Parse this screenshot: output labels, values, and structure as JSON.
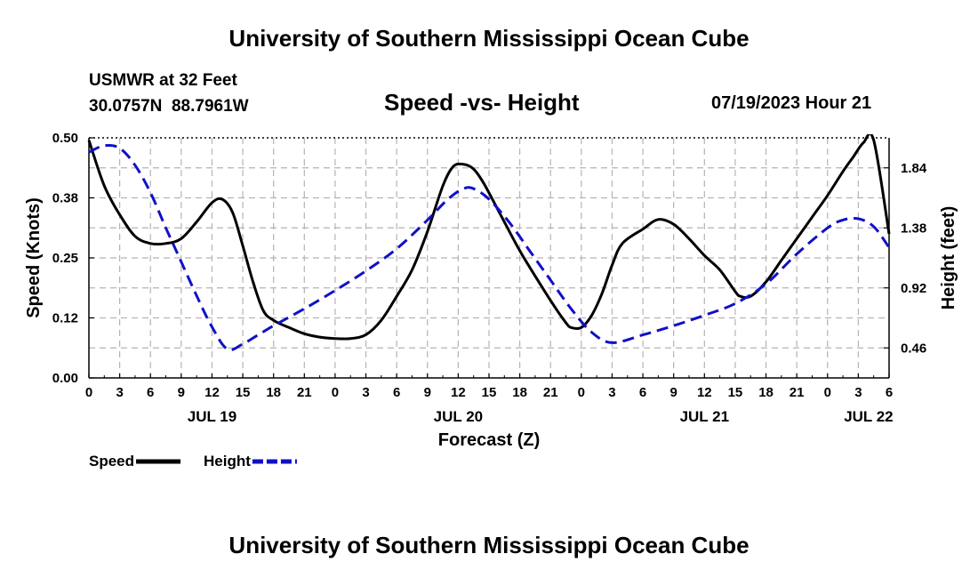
{
  "header": {
    "title": "University of Southern Mississippi Ocean Cube",
    "station_name": "USMWR at 32 Feet",
    "station_coords": "30.0757N  88.7961W",
    "subtitle": "Speed -vs- Height",
    "datestamp": "07/19/2023 Hour 21"
  },
  "footer": {
    "title": "University of Southern Mississippi Ocean Cube"
  },
  "chart_data": {
    "type": "line",
    "title": "Speed -vs- Height",
    "xlabel": "Forecast (Z)",
    "ylabel_left": "Speed (Knots)",
    "ylabel_right": "Height (feet)",
    "x_unit": "hours since 00Z JUL 19",
    "xlim": [
      0,
      78
    ],
    "ylim_left": [
      0,
      0.5
    ],
    "ylim_right": [
      0.23,
      2.07
    ],
    "grid": true,
    "legend_position": "bottom-left",
    "x_ticks": [
      0,
      3,
      6,
      9,
      12,
      15,
      18,
      21,
      24,
      27,
      30,
      33,
      36,
      39,
      42,
      45,
      48,
      51,
      54,
      57,
      60,
      63,
      66,
      69,
      72,
      75,
      78
    ],
    "x_tick_labels": [
      "0",
      "3",
      "6",
      "9",
      "12",
      "15",
      "18",
      "21",
      "0",
      "3",
      "6",
      "9",
      "12",
      "15",
      "18",
      "21",
      "0",
      "3",
      "6",
      "9",
      "12",
      "15",
      "18",
      "21",
      "0",
      "3",
      "6"
    ],
    "date_labels": [
      {
        "x": 12,
        "label": "JUL 19"
      },
      {
        "x": 36,
        "label": "JUL 20"
      },
      {
        "x": 60,
        "label": "JUL 21"
      },
      {
        "x": 76,
        "label": "JUL 22"
      }
    ],
    "y_left_ticks": [
      0.0,
      0.125,
      0.25,
      0.375,
      0.5
    ],
    "y_left_tick_labels": [
      "0.00",
      "0.12",
      "0.25",
      "0.38",
      "0.50"
    ],
    "y_right_ticks": [
      0.46,
      0.92,
      1.38,
      1.84
    ],
    "y_right_tick_labels": [
      "0.46",
      "0.92",
      "1.38",
      "1.84"
    ],
    "series": [
      {
        "name": "Speed",
        "axis": "left",
        "color": "#000000",
        "dash": "solid",
        "x": [
          0,
          1.5,
          3,
          4.5,
          6,
          7.5,
          9,
          10.5,
          12,
          13,
          14,
          15,
          16,
          17,
          18,
          19.5,
          21,
          22.5,
          24,
          25.5,
          27,
          28.5,
          30,
          31.5,
          33,
          34.5,
          35.5,
          36.5,
          37.5,
          38.5,
          40,
          42,
          44,
          45.5,
          46.5,
          47,
          48,
          49,
          50,
          51,
          52,
          54,
          55.5,
          57,
          58.5,
          60,
          61.5,
          63,
          63.5,
          64.5,
          66,
          67.5,
          69,
          70.5,
          72,
          73.5,
          74.5,
          75.5,
          76.5,
          78
        ],
        "values": [
          0.495,
          0.4,
          0.34,
          0.295,
          0.28,
          0.28,
          0.29,
          0.325,
          0.365,
          0.372,
          0.345,
          0.275,
          0.2,
          0.14,
          0.12,
          0.105,
          0.092,
          0.085,
          0.082,
          0.082,
          0.09,
          0.12,
          0.17,
          0.225,
          0.305,
          0.4,
          0.44,
          0.445,
          0.435,
          0.405,
          0.345,
          0.265,
          0.195,
          0.145,
          0.115,
          0.105,
          0.105,
          0.13,
          0.175,
          0.235,
          0.28,
          0.31,
          0.33,
          0.32,
          0.29,
          0.255,
          0.225,
          0.18,
          0.17,
          0.17,
          0.2,
          0.245,
          0.29,
          0.335,
          0.38,
          0.43,
          0.46,
          0.49,
          0.495,
          0.3
        ]
      },
      {
        "name": "Height",
        "axis": "right",
        "color": "#1010c8",
        "dash": "dashed",
        "x": [
          0,
          1.5,
          3,
          4.5,
          6,
          7.5,
          9,
          10.5,
          12,
          13.5,
          15,
          16.5,
          18,
          21,
          24,
          27,
          30,
          33,
          35,
          36.5,
          37.5,
          39,
          41,
          43,
          45,
          47,
          49,
          51,
          54,
          57,
          60,
          63,
          66,
          69,
          72,
          73.5,
          75,
          76.5,
          78
        ],
        "values": [
          1.96,
          2.01,
          1.99,
          1.86,
          1.65,
          1.38,
          1.12,
          0.86,
          0.62,
          0.45,
          0.49,
          0.56,
          0.63,
          0.76,
          0.9,
          1.05,
          1.22,
          1.44,
          1.6,
          1.68,
          1.68,
          1.6,
          1.42,
          1.2,
          0.98,
          0.76,
          0.58,
          0.5,
          0.56,
          0.63,
          0.71,
          0.8,
          0.95,
          1.18,
          1.38,
          1.44,
          1.45,
          1.39,
          1.23
        ]
      }
    ]
  }
}
